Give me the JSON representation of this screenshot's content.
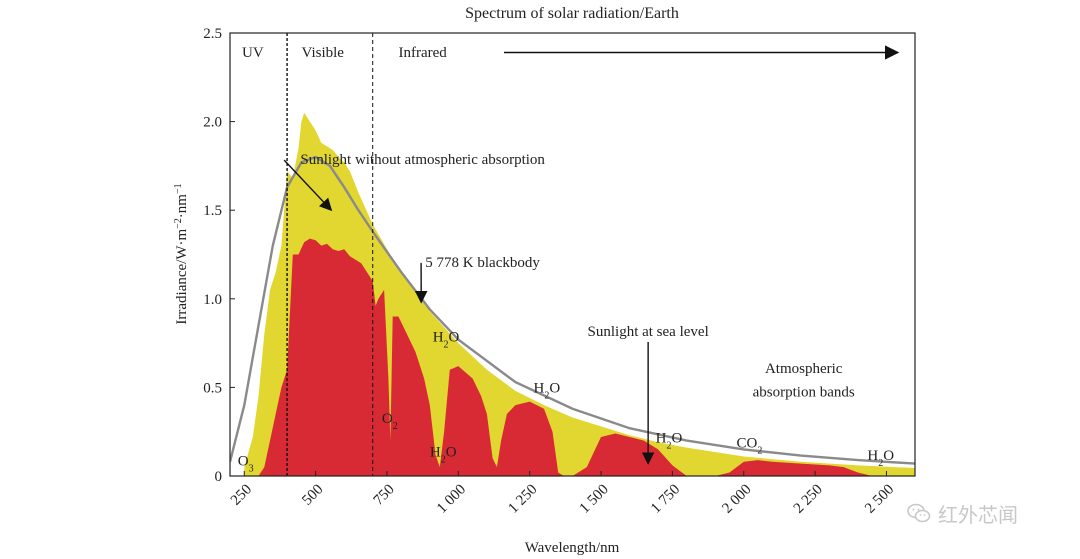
{
  "chart_data": {
    "type": "area",
    "title": "Spectrum of solar radiation/Earth",
    "xlabel": "Wavelength/nm",
    "ylabel_parts": [
      "Irradiance/W·m",
      "−2",
      "·nm",
      "−1"
    ],
    "xlim": [
      200,
      2600
    ],
    "ylim": [
      0,
      2.5
    ],
    "x_ticks": [
      250,
      500,
      750,
      1000,
      1250,
      1500,
      1750,
      2000,
      2250,
      2500
    ],
    "x_tick_labels": [
      "250",
      "500",
      "750",
      "1 000",
      "1 250",
      "1 500",
      "1 750",
      "2 000",
      "2 250",
      "2 500"
    ],
    "y_ticks": [
      0,
      0.5,
      1.0,
      1.5,
      2.0,
      2.5
    ],
    "y_tick_labels": [
      "0",
      "0.5",
      "1.0",
      "1.5",
      "2.0",
      "2.5"
    ],
    "grid": false,
    "region_dividers": [
      {
        "x": 400,
        "style": "dashed"
      },
      {
        "x": 700,
        "style": "dashed"
      }
    ],
    "regions": [
      {
        "label": "UV",
        "x": 280
      },
      {
        "label": "Visible",
        "x": 525
      },
      {
        "label": "Infrared",
        "x": 875
      }
    ],
    "series": [
      {
        "role": "top-of-atmosphere",
        "color": "#e2d630",
        "x": [
          250,
          280,
          300,
          320,
          340,
          360,
          380,
          400,
          420,
          440,
          450,
          460,
          480,
          500,
          520,
          540,
          560,
          580,
          600,
          620,
          650,
          700,
          750,
          800,
          900,
          1000,
          1100,
          1200,
          1300,
          1400,
          1500,
          1600,
          1700,
          1800,
          2000,
          2200,
          2400,
          2600
        ],
        "y": [
          0.05,
          0.22,
          0.45,
          0.8,
          1.05,
          1.15,
          1.3,
          1.72,
          1.68,
          1.85,
          2.0,
          2.05,
          2.0,
          1.95,
          1.88,
          1.86,
          1.84,
          1.8,
          1.77,
          1.72,
          1.6,
          1.42,
          1.28,
          1.15,
          0.93,
          0.75,
          0.6,
          0.48,
          0.4,
          0.33,
          0.28,
          0.23,
          0.19,
          0.16,
          0.11,
          0.08,
          0.06,
          0.045
        ]
      },
      {
        "role": "sea-level",
        "color": "#d72a35",
        "x": [
          300,
          320,
          340,
          360,
          380,
          400,
          420,
          440,
          460,
          480,
          500,
          520,
          540,
          560,
          580,
          600,
          620,
          640,
          660,
          680,
          700,
          710,
          720,
          740,
          755,
          762,
          770,
          790,
          820,
          850,
          880,
          900,
          920,
          935,
          950,
          970,
          1000,
          1050,
          1080,
          1100,
          1120,
          1135,
          1150,
          1170,
          1200,
          1250,
          1300,
          1330,
          1350,
          1370,
          1400,
          1450,
          1500,
          1550,
          1600,
          1650,
          1700,
          1750,
          1800,
          1850,
          1900,
          1950,
          2000,
          2050,
          2100,
          2200,
          2300,
          2350,
          2400,
          2450,
          2500,
          2600
        ],
        "y": [
          0.0,
          0.05,
          0.2,
          0.35,
          0.5,
          0.6,
          1.25,
          1.25,
          1.32,
          1.34,
          1.33,
          1.3,
          1.31,
          1.28,
          1.27,
          1.28,
          1.24,
          1.22,
          1.2,
          1.15,
          1.1,
          0.96,
          1.0,
          1.05,
          0.55,
          0.2,
          0.9,
          0.9,
          0.8,
          0.7,
          0.55,
          0.4,
          0.12,
          0.05,
          0.25,
          0.6,
          0.62,
          0.55,
          0.45,
          0.35,
          0.1,
          0.05,
          0.2,
          0.35,
          0.4,
          0.42,
          0.38,
          0.25,
          0.02,
          0.0,
          0.0,
          0.05,
          0.22,
          0.24,
          0.22,
          0.2,
          0.15,
          0.06,
          0.0,
          0.0,
          0.0,
          0.02,
          0.08,
          0.09,
          0.08,
          0.07,
          0.06,
          0.05,
          0.02,
          0.0,
          0.0,
          0.0
        ]
      },
      {
        "name": "5 778 K blackbody",
        "role": "blackbody",
        "color": "#8a8a8a",
        "x": [
          200,
          250,
          300,
          350,
          400,
          450,
          500,
          550,
          600,
          650,
          700,
          800,
          900,
          1000,
          1200,
          1400,
          1600,
          1800,
          2000,
          2200,
          2400,
          2600
        ],
        "y": [
          0.08,
          0.4,
          0.85,
          1.3,
          1.63,
          1.77,
          1.8,
          1.75,
          1.63,
          1.5,
          1.38,
          1.15,
          0.94,
          0.77,
          0.53,
          0.38,
          0.27,
          0.2,
          0.15,
          0.115,
          0.09,
          0.07
        ]
      }
    ],
    "annotations": [
      {
        "text": "Sunlight without atmospheric absorption",
        "at": [
          875,
          1.76
        ],
        "arrow_to": [
          555,
          1.5
        ]
      },
      {
        "text": "5 778 K blackbody",
        "at": [
          1085,
          1.18
        ],
        "arrow_to": [
          870,
          0.98
        ]
      },
      {
        "text": "Sunlight at sea level",
        "at": [
          1665,
          0.79
        ],
        "arrow_to": [
          1665,
          0.07
        ]
      },
      {
        "text": "Atmospheric",
        "at": [
          2210,
          0.58
        ]
      },
      {
        "text": "absorption bands",
        "at": [
          2210,
          0.45
        ]
      }
    ],
    "molecule_labels": [
      {
        "base": "O",
        "sub": "3",
        "at": [
          255,
          0.06
        ]
      },
      {
        "base": "O",
        "sub": "2",
        "at": [
          760,
          0.3
        ]
      },
      {
        "base": "H",
        "sub": "2",
        "suffix": "O",
        "at": [
          947,
          0.11
        ]
      },
      {
        "base": "H",
        "sub": "2",
        "suffix": "O",
        "at": [
          957,
          0.76
        ]
      },
      {
        "base": "H",
        "sub": "2",
        "suffix": "O",
        "at": [
          1310,
          0.47
        ]
      },
      {
        "base": "H",
        "sub": "2",
        "suffix": "O",
        "at": [
          1738,
          0.19
        ]
      },
      {
        "base": "CO",
        "sub": "2",
        "at": [
          2020,
          0.16
        ]
      },
      {
        "base": "H",
        "sub": "2",
        "suffix": "O",
        "at": [
          2480,
          0.09
        ]
      }
    ],
    "arrow_line": {
      "from": [
        1160,
        2.39
      ],
      "to": [
        2540,
        2.39
      ]
    }
  },
  "watermark": {
    "text": "红外芯闻",
    "icon": "wechat-icon"
  }
}
